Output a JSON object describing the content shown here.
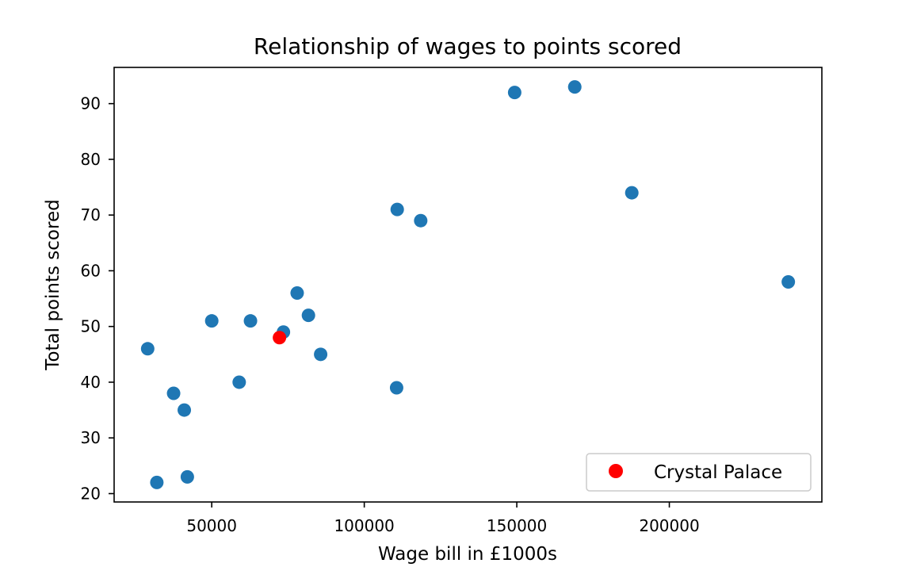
{
  "chart_data": {
    "type": "scatter",
    "title": "Relationship of wages to points scored",
    "xlabel": "Wage bill in £1000s",
    "ylabel": "Total points scored",
    "xlim": [
      18000,
      250000
    ],
    "ylim": [
      18.5,
      96.5
    ],
    "xticks": [
      50000,
      100000,
      150000,
      200000
    ],
    "yticks": [
      20,
      30,
      40,
      50,
      60,
      70,
      80,
      90
    ],
    "grid": false,
    "legend_position": "lower right",
    "series": [
      {
        "color": "#1f77b4",
        "points": [
          {
            "x": 29000,
            "y": 46
          },
          {
            "x": 32000,
            "y": 22
          },
          {
            "x": 37500,
            "y": 38
          },
          {
            "x": 41000,
            "y": 35
          },
          {
            "x": 42000,
            "y": 23
          },
          {
            "x": 50000,
            "y": 51
          },
          {
            "x": 59000,
            "y": 40
          },
          {
            "x": 62700,
            "y": 51
          },
          {
            "x": 73500,
            "y": 49
          },
          {
            "x": 78000,
            "y": 56
          },
          {
            "x": 81700,
            "y": 52
          },
          {
            "x": 85700,
            "y": 45
          },
          {
            "x": 110600,
            "y": 39
          },
          {
            "x": 110800,
            "y": 71
          },
          {
            "x": 118500,
            "y": 69
          },
          {
            "x": 149300,
            "y": 92
          },
          {
            "x": 169000,
            "y": 93
          },
          {
            "x": 187700,
            "y": 74
          },
          {
            "x": 239000,
            "y": 58
          }
        ]
      },
      {
        "name": "Crystal Palace",
        "color": "#ff0000",
        "points": [
          {
            "x": 72200,
            "y": 48
          }
        ]
      }
    ]
  }
}
